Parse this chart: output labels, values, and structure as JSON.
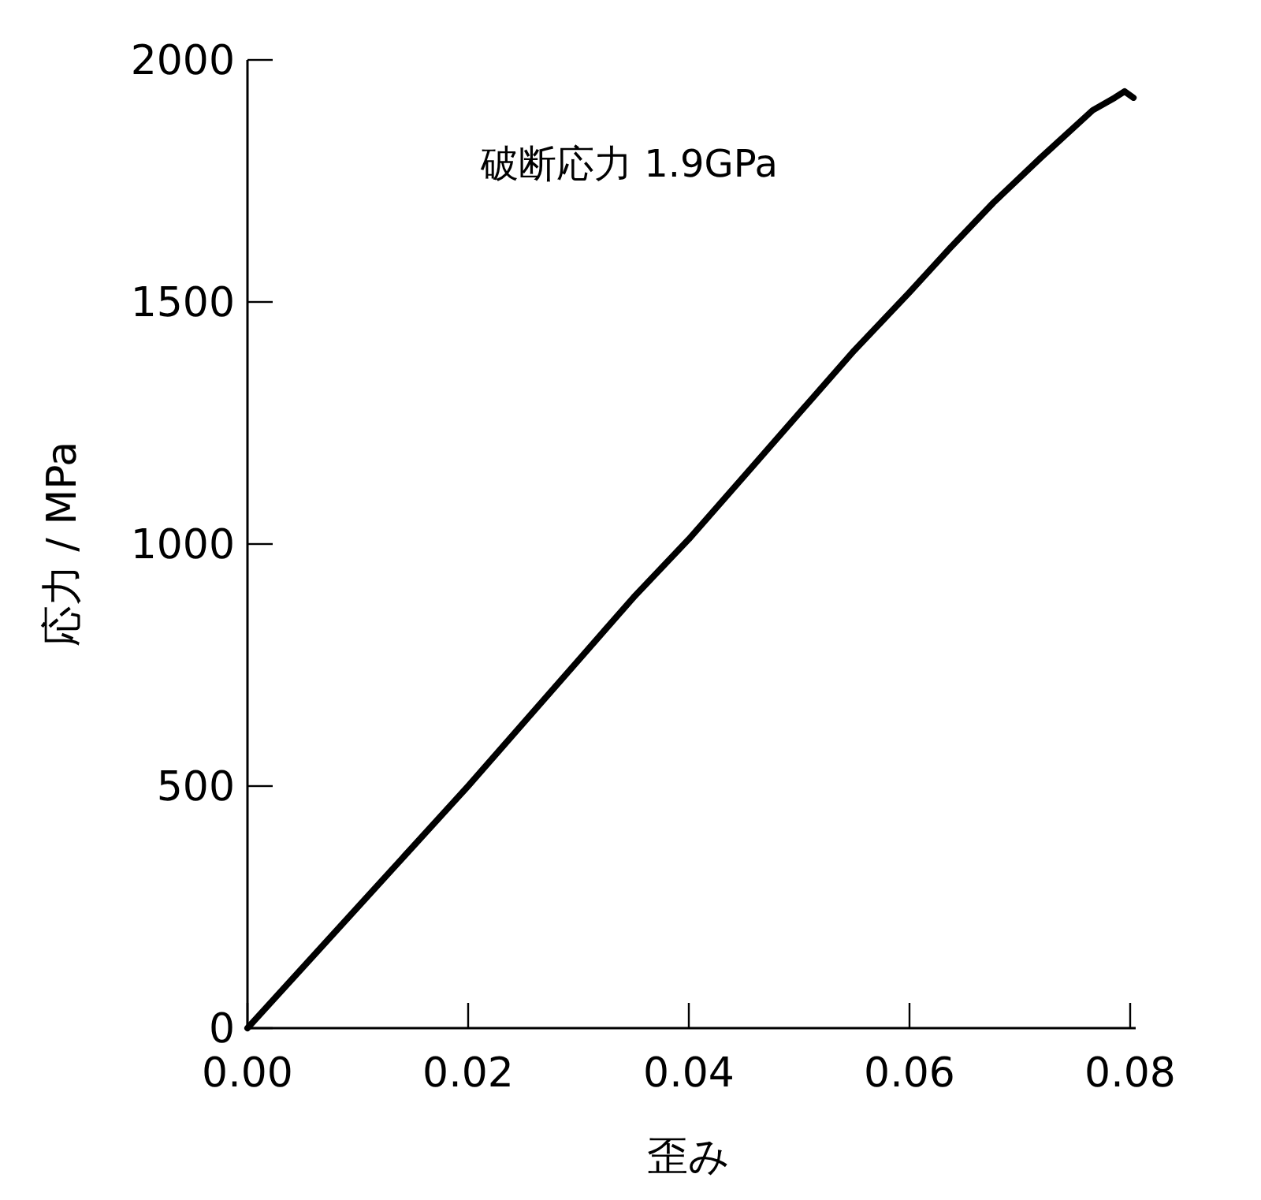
{
  "chart_data": {
    "type": "line",
    "xlabel": "歪み",
    "ylabel": "応力 / MPa",
    "annotations": [
      "破断応力 1.9GPa"
    ],
    "x": [
      0,
      0.005,
      0.01,
      0.015,
      0.02,
      0.025,
      0.03,
      0.035,
      0.04,
      0.045,
      0.05,
      0.055,
      0.06,
      0.0637,
      0.0676,
      0.0719,
      0.0766,
      0.0786,
      0.0795,
      0.0803
    ],
    "series": [
      {
        "color": "#000000",
        "values": [
          0,
          125,
          250,
          375,
          500,
          630,
          760,
          890,
          1010,
          1140,
          1270,
          1400,
          1520,
          1612,
          1705,
          1798,
          1896,
          1922,
          1935,
          1922
        ]
      }
    ],
    "xlim": [
      0,
      0.0805
    ],
    "xticks": [
      {
        "value": 0,
        "label": "0.00"
      },
      {
        "value": 0.02,
        "label": "0.02"
      },
      {
        "value": 0.04,
        "label": "0.04"
      },
      {
        "value": 0.06,
        "label": "0.06"
      },
      {
        "value": 0.08,
        "label": "0.08"
      }
    ],
    "ylim": [
      0,
      2000
    ],
    "yticks": [
      0,
      500,
      1000,
      1500,
      2000
    ],
    "grid": false,
    "marker": "none",
    "line_style": "solid"
  }
}
